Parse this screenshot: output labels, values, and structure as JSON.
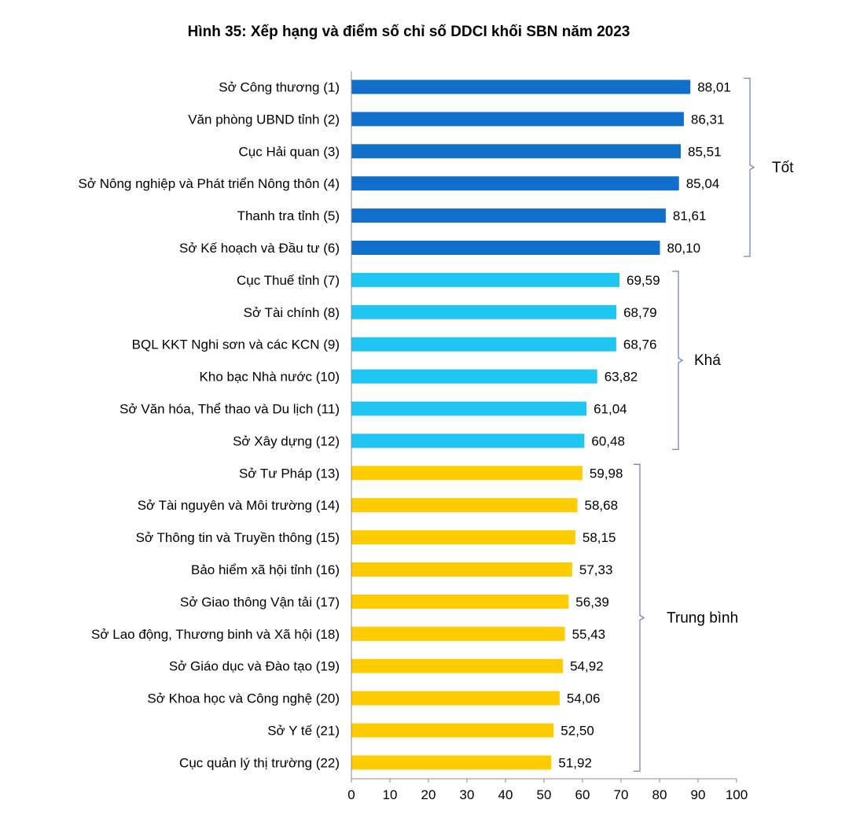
{
  "chart_data": {
    "type": "bar",
    "orientation": "horizontal",
    "title": "Hình 35: Xếp hạng và điểm số chỉ số DDCI khối SBN năm 2023",
    "xlabel": "",
    "ylabel": "",
    "xlim": [
      0,
      100
    ],
    "ticks": [
      "0",
      "10",
      "20",
      "30",
      "40",
      "50",
      "60",
      "70",
      "80",
      "90",
      "100"
    ],
    "grid": false,
    "categories": [
      "Sở Công thương (1)",
      "Văn phòng UBND tỉnh (2)",
      "Cục Hải quan (3)",
      "Sở Nông nghiệp và Phát triển Nông thôn (4)",
      "Thanh tra tỉnh (5)",
      "Sở Kế hoạch và Đầu tư (6)",
      "Cục Thuế tỉnh (7)",
      "Sở Tài chính (8)",
      "BQL KKT Nghi sơn và các KCN (9)",
      "Kho bạc Nhà nước (10)",
      "Sở Văn hóa, Thể thao và Du lịch (11)",
      "Sở Xây dựng (12)",
      "Sở Tư Pháp (13)",
      "Sở Tài nguyên và Môi trường (14)",
      "Sở Thông tin và Truyền thông (15)",
      "Bảo hiểm xã hội tỉnh (16)",
      "Sở Giao thông Vận tải (17)",
      "Sở Lao động, Thương binh và Xã hội (18)",
      "Sở Giáo dục và Đào tạo (19)",
      "Sở Khoa học và Công nghệ (20)",
      "Sở Y tế (21)",
      "Cục quản lý thị trường (22)"
    ],
    "values": [
      88.01,
      86.31,
      85.51,
      85.04,
      81.61,
      80.1,
      69.59,
      68.79,
      68.76,
      63.82,
      61.04,
      60.48,
      59.98,
      58.68,
      58.15,
      57.33,
      56.39,
      55.43,
      54.92,
      54.06,
      52.5,
      51.92
    ],
    "value_labels": [
      "88,01",
      "86,31",
      "85,51",
      "85,04",
      "81,61",
      "80,10",
      "69,59",
      "68,79",
      "68,76",
      "63,82",
      "61,04",
      "60,48",
      "59,98",
      "58,68",
      "58,15",
      "57,33",
      "56,39",
      "55,43",
      "54,92",
      "54,06",
      "52,50",
      "51,92"
    ],
    "groups": [
      {
        "name": "Tốt",
        "start": 0,
        "end": 5,
        "color": "#0f6fcb"
      },
      {
        "name": "Khá",
        "start": 6,
        "end": 11,
        "color": "#1fc6f2"
      },
      {
        "name": "Trung bình",
        "start": 12,
        "end": 21,
        "color": "#ffcc00"
      }
    ],
    "bracket_color": "#6d87b8",
    "axis_color": "#8c8c8c"
  }
}
